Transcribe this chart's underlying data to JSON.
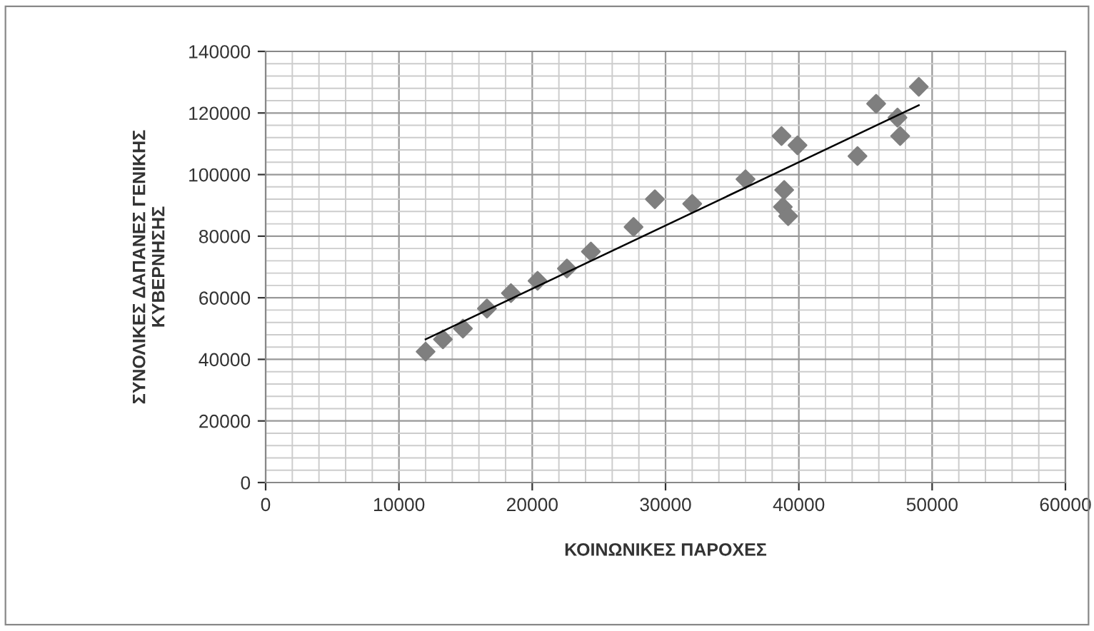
{
  "chart_data": {
    "type": "scatter",
    "xlabel": "ΚΟΙΝΩΝΙΚΕΣ ΠΑΡΟΧΕΣ",
    "ylabel": "ΣΥΝΟΛΙΚΕΣ ΔΑΠΑΝΕΣ ΓΕΝΙΚΗΣ\nΚΥΒΕΡΝΗΣΗΣ",
    "xlim": [
      0,
      60000
    ],
    "xticks": [
      0,
      10000,
      20000,
      30000,
      40000,
      50000,
      60000
    ],
    "ylim": [
      0,
      140000
    ],
    "yticks": [
      0,
      20000,
      40000,
      60000,
      80000,
      100000,
      120000,
      140000
    ],
    "grid": true,
    "series": [
      {
        "marker": "diamond",
        "color": "#7f7f7f",
        "x": [
          12000,
          13300,
          14800,
          16600,
          18400,
          20400,
          22600,
          24400,
          27600,
          29200,
          32000,
          36000,
          38700,
          39900,
          38900,
          38800,
          39200,
          44400,
          45800,
          47400,
          47600,
          49000
        ],
        "values": [
          42500,
          46500,
          50000,
          56500,
          61500,
          65500,
          69500,
          75000,
          83000,
          92000,
          90500,
          98500,
          112500,
          109500,
          95000,
          89500,
          86500,
          106000,
          123000,
          118500,
          112500,
          128500
        ]
      },
      {
        "type": "line",
        "marker": "none",
        "color": "#000000",
        "x": [
          12000,
          49000
        ],
        "values": [
          46500,
          122500
        ]
      }
    ]
  }
}
